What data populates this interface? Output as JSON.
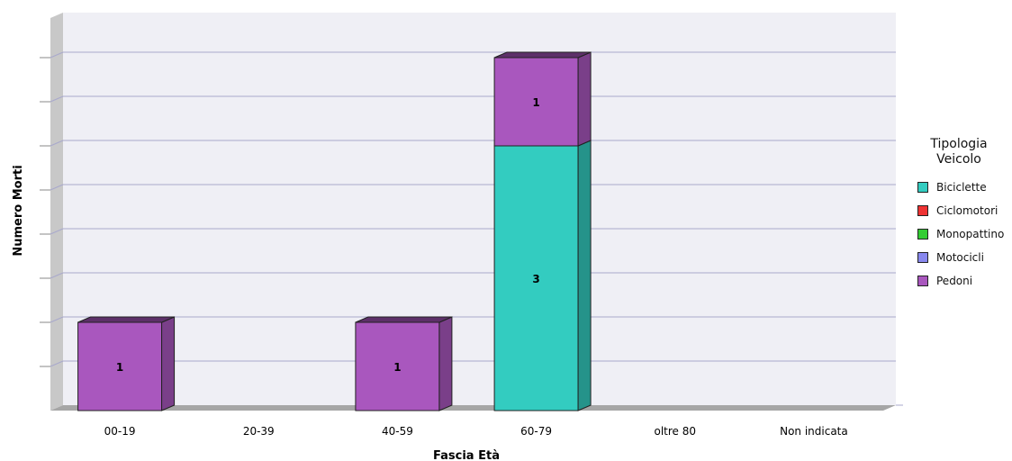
{
  "chart_data": {
    "type": "bar",
    "stacked": true,
    "three_d": true,
    "xlabel": "Fascia Età",
    "ylabel": "Numero Morti",
    "categories": [
      "00-19",
      "20-39",
      "40-59",
      "60-79",
      "oltre 80",
      "Non indicata"
    ],
    "ylim": [
      0,
      4
    ],
    "y_gridlines": 8,
    "y_tick_labels_shown": false,
    "grid": true,
    "legend": {
      "title": "Tipologia Veicolo",
      "position": "right"
    },
    "series": [
      {
        "name": "Biciclette",
        "color": "#33ccc0",
        "values": [
          0,
          0,
          0,
          3,
          0,
          0
        ]
      },
      {
        "name": "Ciclomotori",
        "color": "#ee3333",
        "values": [
          0,
          0,
          0,
          0,
          0,
          0
        ]
      },
      {
        "name": "Monopattino",
        "color": "#33cc33",
        "values": [
          0,
          0,
          0,
          0,
          0,
          0
        ]
      },
      {
        "name": "Motocicli",
        "color": "#8888ee",
        "values": [
          0,
          0,
          0,
          0,
          0,
          0
        ]
      },
      {
        "name": "Pedoni",
        "color": "#a957be",
        "values": [
          1,
          0,
          1,
          1,
          0,
          0
        ]
      }
    ]
  }
}
